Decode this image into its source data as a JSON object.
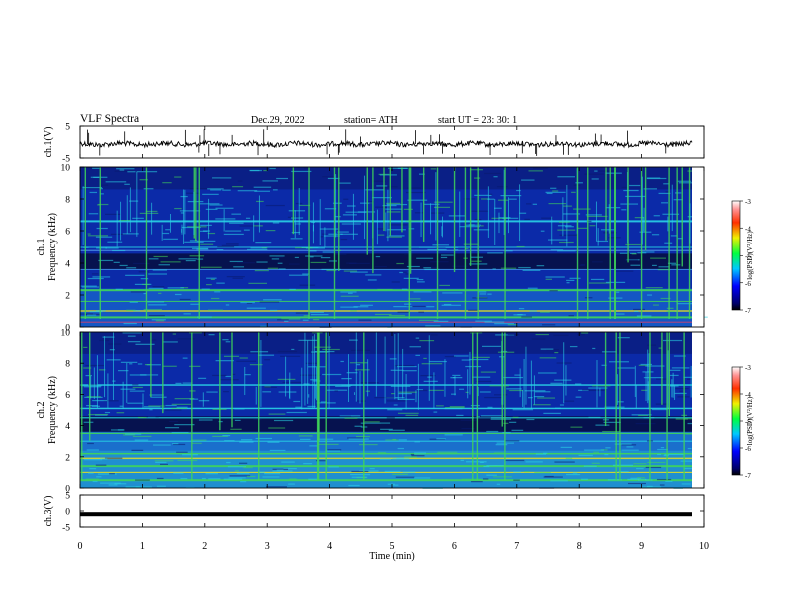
{
  "header": {
    "title": "VLF  Spectra",
    "date": "Dec.29, 2022",
    "station": "station= ATH",
    "start_ut": "start  UT  =    23: 30: 1"
  },
  "colors": {
    "spec_dark": "#06124f",
    "spec_blue": "#0b2aa8",
    "spec_cyan": "#29d3e6",
    "spec_green": "#3fd659",
    "spec_yellow": "#d9d928",
    "waveform": "#000000"
  },
  "chart_data": [
    {
      "type": "line",
      "name": "ch1-waveform",
      "ylabel": "ch.1(V)",
      "ylim": [
        -5,
        5
      ],
      "yticks": [
        "5",
        "-5"
      ],
      "description_of_signal": "noisy waveform around 0 V with sparse impulsive spikes"
    },
    {
      "type": "heatmap",
      "name": "ch1-spectrogram",
      "ylabel_lines": [
        "ch.1",
        "Frequency  (kHz)"
      ],
      "ylim": [
        0,
        10
      ],
      "yticks": [
        "0",
        "2",
        "4",
        "6",
        "8",
        "10"
      ],
      "xlim": [
        0,
        10
      ],
      "colorbar": {
        "label": "log(PSD)(V²/Hz)",
        "range": [
          -7,
          -3
        ],
        "ticks": [
          "-3",
          "-4",
          "-5",
          "-6",
          "-7"
        ]
      }
    },
    {
      "type": "heatmap",
      "name": "ch2-spectrogram",
      "ylabel_lines": [
        "ch.2",
        "Frequency  (kHz)"
      ],
      "ylim": [
        0,
        10
      ],
      "yticks": [
        "0",
        "2",
        "4",
        "6",
        "8",
        "10"
      ],
      "xlim": [
        0,
        10
      ],
      "colorbar": {
        "label": "log(PSD)(V²/Hz)",
        "range": [
          -7,
          -3
        ],
        "ticks": [
          "-3",
          "-4",
          "-5",
          "-6",
          "-7"
        ]
      }
    },
    {
      "type": "line",
      "name": "ch3-waveform",
      "ylabel": "ch.3(V)",
      "ylim": [
        -5,
        5
      ],
      "yticks": [
        "5",
        "0",
        "-5"
      ],
      "level": -1.0
    }
  ],
  "x_axis": {
    "label": "Time  (min)",
    "ticks": [
      "0",
      "1",
      "2",
      "3",
      "4",
      "5",
      "6",
      "7",
      "8",
      "9",
      "10"
    ]
  }
}
